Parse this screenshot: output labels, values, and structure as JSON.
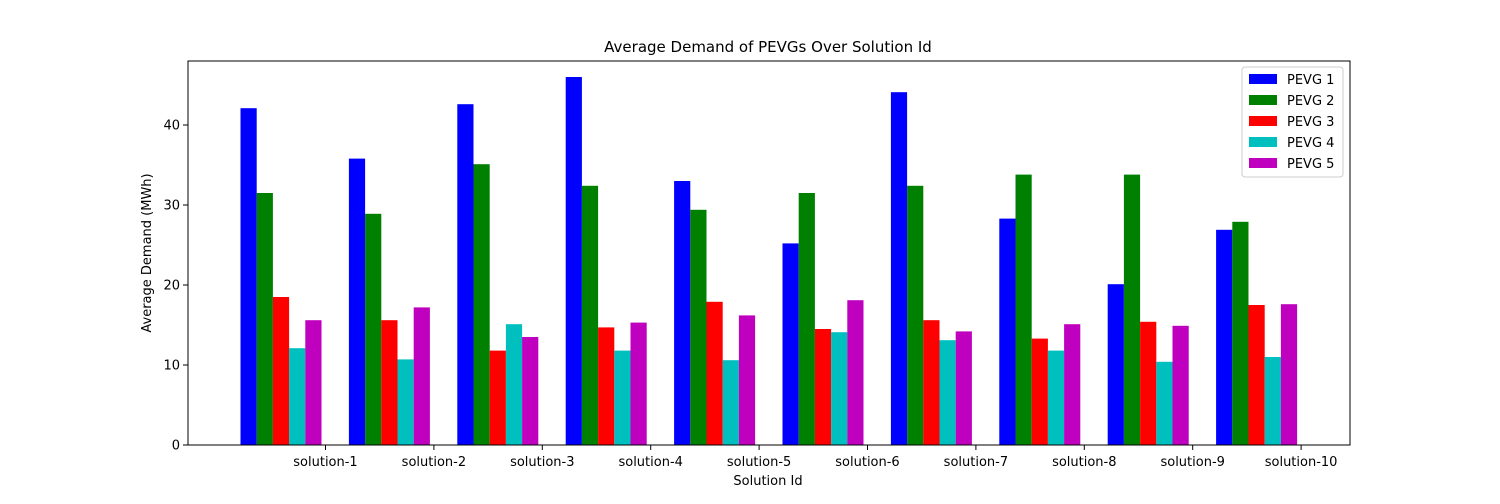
{
  "chart_data": {
    "type": "bar",
    "title": "Average Demand of PEVGs Over Solution Id",
    "xlabel": "Solution Id",
    "ylabel": "Average Demand (MWh)",
    "ylim": [
      0,
      48
    ],
    "yticks": [
      0,
      10,
      20,
      30,
      40
    ],
    "categories": [
      "solution-1",
      "solution-2",
      "solution-3",
      "solution-4",
      "solution-5",
      "solution-6",
      "solution-7",
      "solution-8",
      "solution-9",
      "solution-10"
    ],
    "series": [
      {
        "name": "PEVG 1",
        "color": "#0000ff",
        "values": [
          42.1,
          35.8,
          42.6,
          46.0,
          33.0,
          25.2,
          44.1,
          28.3,
          20.1,
          26.9
        ]
      },
      {
        "name": "PEVG 2",
        "color": "#008000",
        "values": [
          31.5,
          28.9,
          35.1,
          32.4,
          29.4,
          31.5,
          32.4,
          33.8,
          33.8,
          27.9
        ]
      },
      {
        "name": "PEVG 3",
        "color": "#ff0000",
        "values": [
          18.5,
          15.6,
          11.8,
          14.7,
          17.9,
          14.5,
          15.6,
          13.3,
          15.4,
          17.5
        ]
      },
      {
        "name": "PEVG 4",
        "color": "#00bfbf",
        "values": [
          12.1,
          10.7,
          15.1,
          11.8,
          10.6,
          14.1,
          13.1,
          11.8,
          10.4,
          11.0
        ]
      },
      {
        "name": "PEVG 5",
        "color": "#bf00bf",
        "values": [
          15.6,
          17.2,
          13.5,
          15.3,
          16.2,
          18.1,
          14.2,
          15.1,
          14.9,
          17.6
        ]
      }
    ],
    "grid": false,
    "legend": "top-right"
  }
}
